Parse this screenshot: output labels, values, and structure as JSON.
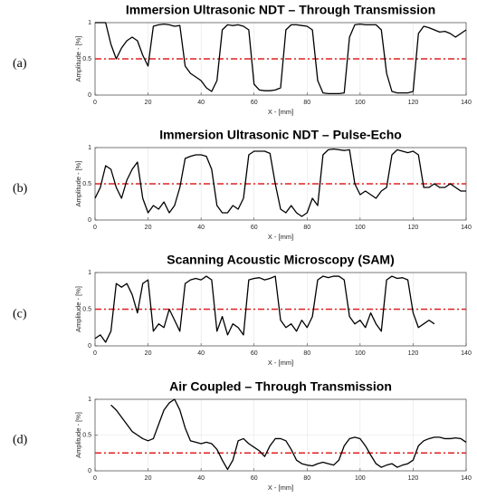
{
  "chart_data": [
    {
      "type": "line",
      "label": "(a)",
      "title": "Immersion Ultrasonic NDT – Through Transmission",
      "xlabel": "X - [mm]",
      "ylabel": "Amplitude - [%]",
      "x": [
        0,
        2,
        4,
        6,
        8,
        10,
        12,
        14,
        16,
        18,
        20,
        22,
        24,
        26,
        28,
        30,
        32,
        34,
        36,
        38,
        40,
        42,
        44,
        46,
        48,
        50,
        52,
        54,
        56,
        58,
        60,
        62,
        64,
        66,
        68,
        70,
        72,
        74,
        76,
        78,
        80,
        82,
        84,
        86,
        88,
        90,
        92,
        94,
        96,
        98,
        100,
        102,
        104,
        106,
        108,
        110,
        112,
        114,
        116,
        118,
        120,
        122,
        124,
        126,
        128,
        130,
        132,
        134,
        136,
        138,
        140
      ],
      "values": [
        1,
        1,
        1,
        0.7,
        0.5,
        0.65,
        0.75,
        0.8,
        0.75,
        0.55,
        0.4,
        0.95,
        0.97,
        0.98,
        0.97,
        0.95,
        0.96,
        0.4,
        0.3,
        0.25,
        0.2,
        0.1,
        0.05,
        0.2,
        0.9,
        0.97,
        0.96,
        0.97,
        0.95,
        0.9,
        0.15,
        0.07,
        0.06,
        0.06,
        0.07,
        0.1,
        0.9,
        0.97,
        0.97,
        0.96,
        0.95,
        0.9,
        0.2,
        0.03,
        0.02,
        0.02,
        0.02,
        0.03,
        0.8,
        0.97,
        0.98,
        0.97,
        0.97,
        0.97,
        0.9,
        0.3,
        0.05,
        0.03,
        0.03,
        0.03,
        0.05,
        0.85,
        0.95,
        0.93,
        0.9,
        0.87,
        0.88,
        0.85,
        0.8,
        0.85,
        0.9
      ],
      "color": "#000000",
      "threshold": 0.5,
      "threshold_color": "#e02020",
      "xlim": [
        0,
        140
      ],
      "ylim": [
        0,
        1
      ],
      "xticks": [
        0,
        20,
        40,
        60,
        80,
        100,
        120,
        140
      ],
      "yticks": [
        0,
        0.5,
        1
      ],
      "grid": true
    },
    {
      "type": "line",
      "label": "(b)",
      "title": "Immersion Ultrasonic NDT – Pulse-Echo",
      "xlabel": "X - [mm]",
      "ylabel": "Amplitude - [%]",
      "x": [
        0,
        2,
        4,
        6,
        8,
        10,
        12,
        14,
        16,
        18,
        20,
        22,
        24,
        26,
        28,
        30,
        32,
        34,
        36,
        38,
        40,
        42,
        44,
        46,
        48,
        50,
        52,
        54,
        56,
        58,
        60,
        62,
        64,
        66,
        68,
        70,
        72,
        74,
        76,
        78,
        80,
        82,
        84,
        86,
        88,
        90,
        92,
        94,
        96,
        98,
        100,
        102,
        104,
        106,
        108,
        110,
        112,
        114,
        116,
        118,
        120,
        122,
        124,
        126,
        128,
        130,
        132,
        134,
        136,
        138,
        140
      ],
      "values": [
        0.3,
        0.45,
        0.75,
        0.7,
        0.45,
        0.3,
        0.55,
        0.7,
        0.8,
        0.3,
        0.1,
        0.2,
        0.15,
        0.25,
        0.1,
        0.2,
        0.45,
        0.85,
        0.88,
        0.9,
        0.9,
        0.88,
        0.7,
        0.2,
        0.1,
        0.1,
        0.2,
        0.15,
        0.3,
        0.9,
        0.95,
        0.95,
        0.95,
        0.92,
        0.5,
        0.15,
        0.1,
        0.2,
        0.1,
        0.05,
        0.1,
        0.3,
        0.2,
        0.9,
        0.97,
        0.98,
        0.97,
        0.96,
        0.97,
        0.5,
        0.35,
        0.4,
        0.35,
        0.3,
        0.4,
        0.45,
        0.9,
        0.97,
        0.95,
        0.93,
        0.95,
        0.9,
        0.45,
        0.45,
        0.5,
        0.45,
        0.45,
        0.5,
        0.45,
        0.4,
        0.4
      ],
      "color": "#000000",
      "threshold": 0.5,
      "threshold_color": "#e02020",
      "xlim": [
        0,
        140
      ],
      "ylim": [
        0,
        1
      ],
      "xticks": [
        0,
        20,
        40,
        60,
        80,
        100,
        120,
        140
      ],
      "yticks": [
        0,
        0.5,
        1
      ],
      "grid": true
    },
    {
      "type": "line",
      "label": "(c)",
      "title": "Scanning Acoustic Microscopy (SAM)",
      "xlabel": "X - [mm]",
      "ylabel": "Amplitude - [%]",
      "x": [
        0,
        2,
        4,
        6,
        8,
        10,
        12,
        14,
        16,
        18,
        20,
        22,
        24,
        26,
        28,
        30,
        32,
        34,
        36,
        38,
        40,
        42,
        44,
        46,
        48,
        50,
        52,
        54,
        56,
        58,
        60,
        62,
        64,
        66,
        68,
        70,
        72,
        74,
        76,
        78,
        80,
        82,
        84,
        86,
        88,
        90,
        92,
        94,
        96,
        98,
        100,
        102,
        104,
        106,
        108,
        110,
        112,
        114,
        116,
        118,
        120,
        122,
        124,
        126,
        128
      ],
      "values": [
        0.1,
        0.15,
        0.05,
        0.2,
        0.85,
        0.8,
        0.85,
        0.7,
        0.45,
        0.85,
        0.9,
        0.2,
        0.3,
        0.25,
        0.5,
        0.35,
        0.2,
        0.85,
        0.9,
        0.92,
        0.9,
        0.95,
        0.9,
        0.2,
        0.4,
        0.15,
        0.3,
        0.25,
        0.15,
        0.9,
        0.92,
        0.93,
        0.9,
        0.92,
        0.95,
        0.35,
        0.25,
        0.3,
        0.2,
        0.35,
        0.25,
        0.4,
        0.9,
        0.95,
        0.93,
        0.95,
        0.95,
        0.9,
        0.4,
        0.3,
        0.35,
        0.25,
        0.45,
        0.3,
        0.2,
        0.9,
        0.95,
        0.92,
        0.93,
        0.9,
        0.45,
        0.25,
        0.3,
        0.35,
        0.3
      ],
      "color": "#000000",
      "threshold": 0.5,
      "threshold_color": "#e02020",
      "xlim": [
        0,
        140
      ],
      "ylim": [
        0,
        1
      ],
      "xticks": [
        0,
        20,
        40,
        60,
        80,
        100,
        120,
        140
      ],
      "yticks": [
        0,
        0.5,
        1
      ],
      "grid": true
    },
    {
      "type": "line",
      "label": "(d)",
      "title": "Air Coupled – Through Transmission",
      "xlabel": "X - [mm]",
      "ylabel": "Amplitude - [%]",
      "x": [
        6,
        8,
        10,
        12,
        14,
        16,
        18,
        20,
        22,
        24,
        26,
        28,
        30,
        32,
        34,
        36,
        38,
        40,
        42,
        44,
        46,
        48,
        50,
        52,
        54,
        56,
        58,
        60,
        62,
        64,
        66,
        68,
        70,
        72,
        74,
        76,
        78,
        80,
        82,
        84,
        86,
        88,
        90,
        92,
        94,
        96,
        98,
        100,
        102,
        104,
        106,
        108,
        110,
        112,
        114,
        116,
        118,
        120,
        122,
        124,
        126,
        128,
        130,
        132,
        134,
        136,
        138,
        140
      ],
      "values": [
        0.92,
        0.85,
        0.75,
        0.65,
        0.55,
        0.5,
        0.45,
        0.42,
        0.45,
        0.65,
        0.85,
        0.95,
        1.0,
        0.85,
        0.6,
        0.42,
        0.4,
        0.38,
        0.4,
        0.38,
        0.3,
        0.15,
        0.02,
        0.15,
        0.42,
        0.45,
        0.38,
        0.33,
        0.28,
        0.2,
        0.35,
        0.45,
        0.45,
        0.42,
        0.3,
        0.15,
        0.1,
        0.08,
        0.07,
        0.1,
        0.12,
        0.1,
        0.08,
        0.15,
        0.35,
        0.45,
        0.47,
        0.45,
        0.35,
        0.22,
        0.1,
        0.05,
        0.08,
        0.1,
        0.05,
        0.08,
        0.1,
        0.15,
        0.35,
        0.42,
        0.45,
        0.47,
        0.47,
        0.45,
        0.45,
        0.46,
        0.45,
        0.4
      ],
      "color": "#000000",
      "threshold": 0.25,
      "threshold_color": "#e02020",
      "xlim": [
        0,
        140
      ],
      "ylim": [
        0,
        1
      ],
      "xticks": [
        0,
        20,
        40,
        60,
        80,
        100,
        120,
        140
      ],
      "yticks": [
        0,
        0.5,
        1
      ],
      "grid": true
    }
  ]
}
